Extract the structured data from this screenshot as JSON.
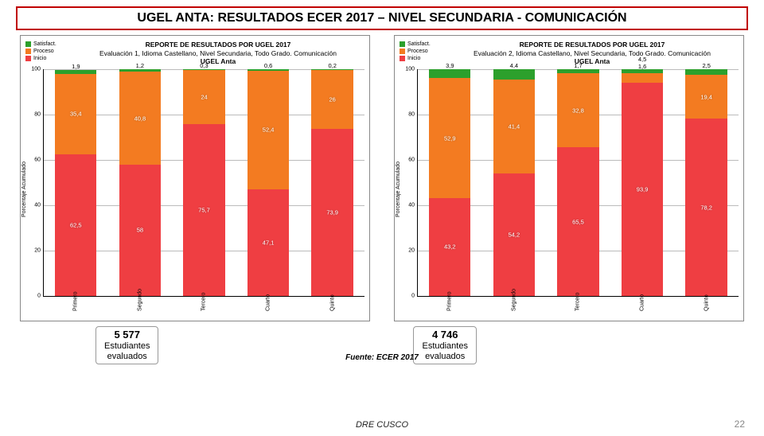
{
  "title": "UGEL ANTA: RESULTADOS ECER 2017 – NIVEL SECUNDARIA - COMUNICACIÓN",
  "colors": {
    "satisfact": "#2ca02c",
    "proceso": "#f37b21",
    "inicio": "#ef3e42",
    "grid": "#bbbbbb",
    "title_border": "#c00000",
    "bg": "#ffffff"
  },
  "legend": {
    "items": [
      {
        "key": "satisfact",
        "label": "Satisfact."
      },
      {
        "key": "proceso",
        "label": "Proceso"
      },
      {
        "key": "inicio",
        "label": "Inicio"
      }
    ]
  },
  "y_axis": {
    "label": "Porcentaje Acumulado",
    "ticks": [
      0,
      20,
      40,
      60,
      80,
      100
    ],
    "ylim": [
      0,
      100
    ]
  },
  "x_labels": [
    "Primero",
    "Segundo",
    "Tercero",
    "Cuarto",
    "Quinto"
  ],
  "charts": [
    {
      "title_line1": "REPORTE DE RESULTADOS POR UGEL 2017",
      "title_line2": "Evaluación 1, Idioma Castellano, Nivel Secundaria, Todo Grado. Comunicación",
      "title_line3": "UGEL Anta",
      "bars": [
        {
          "inicio": 62.5,
          "proceso": 35.4,
          "sat": 1.9,
          "top_override": null
        },
        {
          "inicio": 58.0,
          "proceso": 40.8,
          "sat": 1.2,
          "top_override": null
        },
        {
          "inicio": 75.7,
          "proceso": 24.0,
          "sat": 0.3,
          "top_override": null
        },
        {
          "inicio": 47.1,
          "proceso": 52.4,
          "sat": 0.6,
          "top_override": null
        },
        {
          "inicio": 73.9,
          "proceso": 26.0,
          "sat": 0.2,
          "top_override": null
        }
      ]
    },
    {
      "title_line1": "REPORTE DE RESULTADOS POR UGEL 2017",
      "title_line2": "Evaluación 2, Idioma Castellano, Nivel Secundaria, Todo Grado. Comunicación",
      "title_line3": "UGEL Anta",
      "bars": [
        {
          "inicio": 43.2,
          "proceso": 52.9,
          "sat": 3.9,
          "top_override": null
        },
        {
          "inicio": 54.2,
          "proceso": 41.4,
          "sat": 4.4,
          "top_override": null
        },
        {
          "inicio": 65.5,
          "proceso": 32.8,
          "sat": 1.7,
          "top_override": null
        },
        {
          "inicio": 93.9,
          "proceso": 4.5,
          "sat": 1.6,
          "top_override": [
            "4,5",
            "1,6"
          ]
        },
        {
          "inicio": 78.2,
          "proceso": 19.4,
          "sat": 2.5,
          "top_override": null
        }
      ]
    }
  ],
  "callouts": [
    {
      "num": "5 577",
      "line1": "Estudiantes",
      "line2": "evaluados"
    },
    {
      "num": "4 746",
      "line1": "Estudiantes",
      "line2": "evaluados"
    }
  ],
  "source": "Fuente: ECER 2017",
  "footer_org": "DRE CUSCO",
  "page_num": "22",
  "label_fontsize": 7.5,
  "title_fontsize": 16
}
